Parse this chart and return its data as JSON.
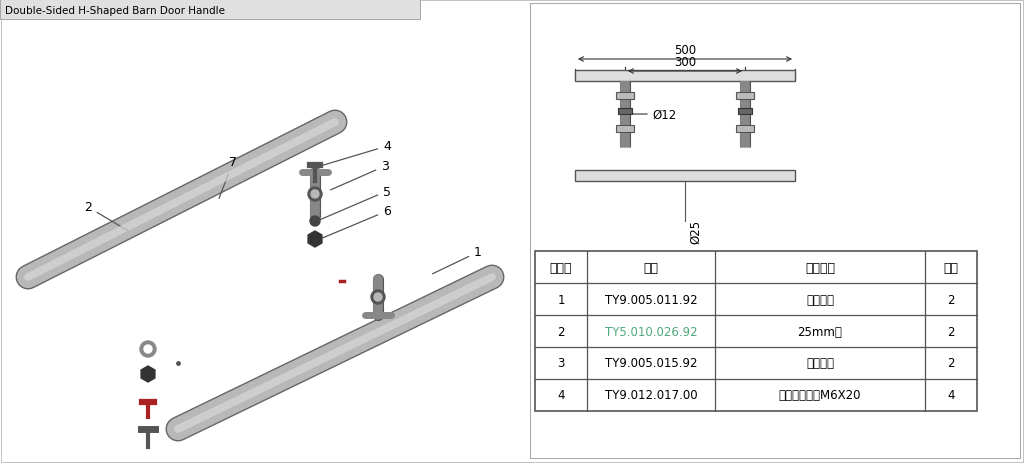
{
  "bg_color": "#ffffff",
  "table_headers": [
    "项目号",
    "图号",
    "图样名称",
    "数量"
  ],
  "table_rows": [
    [
      "1",
      "TY9.005.011.92",
      "扶手支架",
      "2"
    ],
    [
      "2",
      "TY5.010.026.92",
      "25mm管",
      "2"
    ],
    [
      "3",
      "TY9.005.015.92",
      "扶手支架",
      "2"
    ],
    [
      "4",
      "TY9.012.017.00",
      "圆柱头内六角M6X20",
      "4"
    ]
  ],
  "row2_link_color": "#4daa7a",
  "dim_500": "500",
  "dim_300": "300",
  "dim_phi12": "Ø12",
  "dim_phi25": "Ø25",
  "part_labels": [
    "1",
    "2",
    "3",
    "4",
    "5",
    "6",
    "7"
  ],
  "title_text": "Double-Sided H-Shaped Barn Door Handle",
  "dim_color": "#333333",
  "tube_color": "#b8b8b8",
  "tube_edge": "#666666",
  "tube_highlight": "#d8d8d8",
  "bracket_color": "#888888",
  "nut_color": "#333333",
  "line_color": "#555555",
  "table_line_color": "#555555",
  "border_color": "#aaaaaa"
}
